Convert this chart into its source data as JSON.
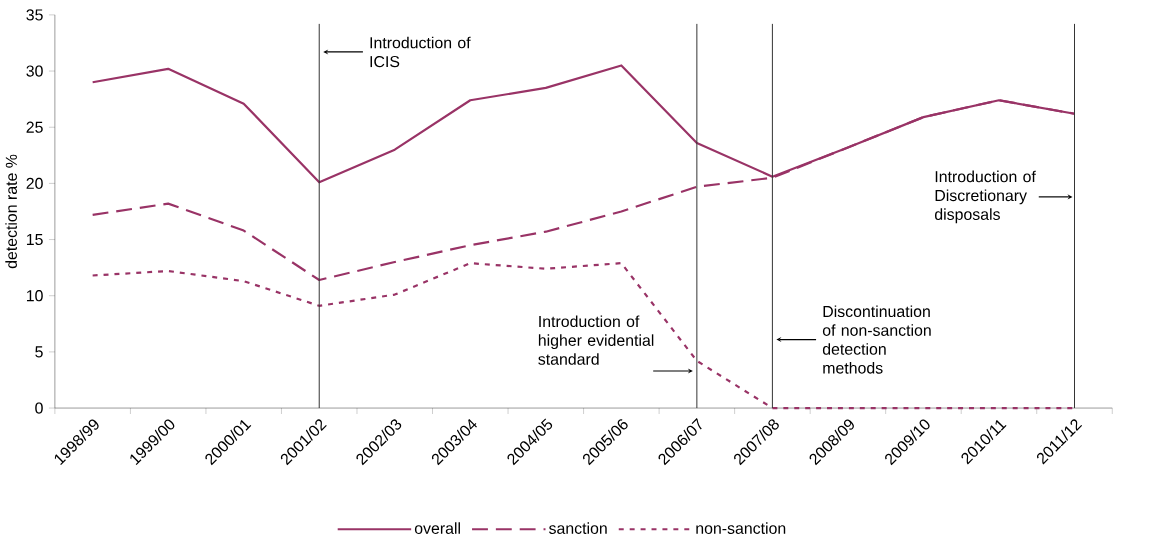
{
  "chart_data": {
    "type": "line",
    "ylabel": "detection rate %",
    "categories": [
      "1998/99",
      "1999/00",
      "2000/01",
      "2001/02",
      "2002/03",
      "2003/04",
      "2004/05",
      "2005/06",
      "2006/07",
      "2007/08",
      "2008/09",
      "2009/10",
      "2010/11",
      "2011/12"
    ],
    "series": [
      {
        "name": "overall",
        "color": "#993366",
        "line_style": "solid",
        "values": [
          29.0,
          30.2,
          27.1,
          20.1,
          23.0,
          27.4,
          28.5,
          30.5,
          23.6,
          20.6,
          23.2,
          25.9,
          27.4,
          26.2
        ]
      },
      {
        "name": "sanction",
        "color": "#993366",
        "line_style": "dashed",
        "values": [
          17.2,
          18.2,
          15.8,
          11.4,
          13.0,
          14.5,
          15.7,
          17.5,
          19.7,
          20.5,
          23.2,
          25.9,
          27.4,
          26.2
        ]
      },
      {
        "name": "non-sanction",
        "color": "#993366",
        "line_style": "dotted",
        "values": [
          11.8,
          12.2,
          11.3,
          9.1,
          10.1,
          12.9,
          12.4,
          12.9,
          4.2,
          0,
          0,
          0,
          0,
          0
        ]
      }
    ],
    "ylim": [
      0,
      35
    ],
    "yticks": [
      0,
      5,
      10,
      15,
      20,
      25,
      30,
      35
    ],
    "ref_lines": [
      {
        "axis": "x",
        "value": "2001/02",
        "label": "Introduction of ICIS",
        "color": "#333333"
      },
      {
        "axis": "x",
        "value": "2006/07",
        "label": "Introduction of higher evidential standard",
        "color": "#333333"
      },
      {
        "axis": "x",
        "value": "2007/08",
        "label": "Discontinuation of non-sanction detection methods",
        "color": "#333333"
      },
      {
        "axis": "x",
        "value": "2011/12",
        "label": "Introduction of Discretionary disposals",
        "color": "#333333"
      }
    ],
    "grid": false,
    "legend": "bottom",
    "marker": "none"
  }
}
